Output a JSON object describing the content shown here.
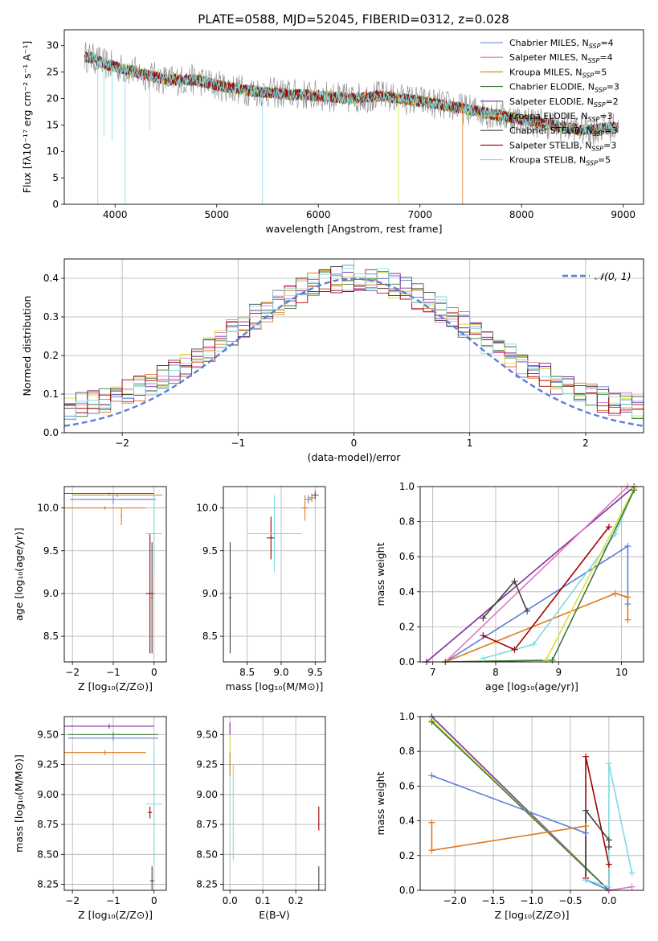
{
  "figure": {
    "title": "PLATE=0588, MJD=52045, FIBERID=0312, z=0.028"
  },
  "chart_data": [
    {
      "id": "spectrum",
      "type": "line",
      "xlabel": "wavelength [Angstrom, rest frame]",
      "ylabel": "Flux [fλ10⁻¹⁷ erg cm⁻² s⁻¹ A⁻¹]",
      "xlim": [
        3500,
        9200
      ],
      "ylim": [
        0,
        33
      ],
      "xticks": [
        4000,
        5000,
        6000,
        7000,
        8000,
        9000
      ],
      "yticks": [
        0,
        5,
        10,
        15,
        20,
        25,
        30
      ],
      "grid": false,
      "legend_position": "top-right",
      "legend": [
        {
          "label": "Chabrier MILES, N",
          "sub": "SSP",
          "suffix": "=4",
          "color": "#5b7fd6"
        },
        {
          "label": "Salpeter MILES, N",
          "sub": "SSP",
          "suffix": "=4",
          "color": "#e377c2"
        },
        {
          "label": "Kroupa MILES, N",
          "sub": "SSP",
          "suffix": "=5",
          "color": "#c8860a"
        },
        {
          "label": "Chabrier ELODIE, N",
          "sub": "SSP",
          "suffix": "=3",
          "color": "#3c7a3c"
        },
        {
          "label": "Salpeter ELODIE, N",
          "sub": "SSP",
          "suffix": "=2",
          "color": "#7b2d9e"
        },
        {
          "label": "Kroupa ELODIE, N",
          "sub": "SSP",
          "suffix": "=3",
          "color": "#dde03a"
        },
        {
          "label": "Chabrier STELIB, N",
          "sub": "SSP",
          "suffix": "=3",
          "color": "#444444"
        },
        {
          "label": "Salpeter STELIB, N",
          "sub": "SSP",
          "suffix": "=3",
          "color": "#a00000"
        },
        {
          "label": "Kroupa STELIB, N",
          "sub": "SSP",
          "suffix": "=5",
          "color": "#7fdbe0"
        }
      ],
      "series_envelope": {
        "x": [
          3700,
          3800,
          3900,
          4000,
          4100,
          4300,
          4500,
          4800,
          5000,
          5300,
          5600,
          6000,
          6300,
          6600,
          6800,
          7000,
          7300,
          7600,
          8000,
          8300,
          8600,
          8900
        ],
        "y": [
          28,
          27.5,
          26.5,
          26,
          25.5,
          24.5,
          23.5,
          23.5,
          22.5,
          21.5,
          21,
          20.5,
          20,
          20.5,
          20,
          19.5,
          18.5,
          17.5,
          16,
          15,
          14,
          14.5
        ]
      }
    },
    {
      "id": "residuals",
      "type": "line",
      "xlabel": "(data-model)/error",
      "ylabel": "Normed distribution",
      "xlim": [
        -2.5,
        2.5
      ],
      "ylim": [
        0,
        0.45
      ],
      "xticks": [
        -2,
        -1,
        0,
        1,
        2
      ],
      "yticks": [
        0.0,
        0.1,
        0.2,
        0.3,
        0.4
      ],
      "grid": true,
      "legend_position": "top-right",
      "legend_label": "𝒩(0, 1)",
      "gaussian": {
        "mu": 0,
        "sigma": 1,
        "color": "#5b7fd6"
      }
    },
    {
      "id": "age_vs_Z",
      "type": "scatter",
      "xlabel": "Z [log₁₀(Z/Z⊙)]",
      "ylabel": "age  [log₁₀(age/yr)]",
      "xlim": [
        -2.2,
        0.3
      ],
      "ylim": [
        8.2,
        10.25
      ],
      "xticks": [
        -2,
        -1,
        0
      ],
      "yticks": [
        8.5,
        9.0,
        9.5,
        10.0
      ],
      "grid": true,
      "points": [
        {
          "x": -1.1,
          "y": 10.17,
          "xe": 1.1,
          "ye": 0.01,
          "color": "#7b2d9e"
        },
        {
          "x": -1.0,
          "y": 10.1,
          "xe": 1.05,
          "ye": 0.05,
          "color": "#5b7fd6"
        },
        {
          "x": -0.9,
          "y": 10.15,
          "xe": 1.1,
          "ye": 0.02,
          "color": "#c8860a"
        },
        {
          "x": -1.2,
          "y": 10.0,
          "xe": 1.0,
          "ye": 0.02,
          "color": "#e07820"
        },
        {
          "x": -0.8,
          "y": 9.9,
          "xe": 0.02,
          "ye": 0.1,
          "color": "#e07820"
        },
        {
          "x": -0.1,
          "y": 9.0,
          "xe": 0.1,
          "ye": 0.7,
          "color": "#a00000"
        },
        {
          "x": -0.05,
          "y": 8.95,
          "xe": 0.02,
          "ye": 0.65,
          "color": "#444444"
        },
        {
          "x": 0.0,
          "y": 9.7,
          "xe": 0.2,
          "ye": 0.45,
          "color": "#7fdbe0"
        }
      ]
    },
    {
      "id": "age_vs_mass",
      "type": "scatter",
      "xlabel": "mass [log₁₀(M/M⊙)]",
      "ylabel": "",
      "xlim": [
        8.15,
        9.65
      ],
      "ylim": [
        8.2,
        10.25
      ],
      "xticks": [
        8.5,
        9.0,
        9.5
      ],
      "yticks": [
        8.5,
        9.0,
        9.5,
        10.0
      ],
      "grid": true,
      "points": [
        {
          "x": 9.5,
          "y": 10.15,
          "xe": 0.05,
          "ye": 0.05,
          "color": "#7b2d9e"
        },
        {
          "x": 9.4,
          "y": 10.1,
          "xe": 0.05,
          "ye": 0.05,
          "color": "#5b7fd6"
        },
        {
          "x": 9.45,
          "y": 10.12,
          "xe": 0.05,
          "ye": 0.05,
          "color": "#c8860a"
        },
        {
          "x": 9.35,
          "y": 10.0,
          "xe": 0.05,
          "ye": 0.15,
          "color": "#e07820"
        },
        {
          "x": 8.85,
          "y": 9.65,
          "xe": 0.06,
          "ye": 0.25,
          "color": "#a00000"
        },
        {
          "x": 8.9,
          "y": 9.7,
          "xe": 0.4,
          "ye": 0.45,
          "color": "#7fdbe0"
        },
        {
          "x": 8.25,
          "y": 8.95,
          "xe": 0.02,
          "ye": 0.65,
          "color": "#444444"
        }
      ]
    },
    {
      "id": "massweight_vs_age",
      "type": "line",
      "xlabel": "age  [log₁₀(age/yr)]",
      "ylabel": "mass weight",
      "xlim": [
        6.8,
        10.35
      ],
      "ylim": [
        0,
        1
      ],
      "xticks": [
        7,
        8,
        9,
        10
      ],
      "yticks": [
        0.0,
        0.2,
        0.4,
        0.6,
        0.8,
        1.0
      ],
      "grid": true,
      "series": [
        {
          "color": "#7b2d9e",
          "x": [
            6.9,
            10.2
          ],
          "y": [
            0.0,
            1.0
          ]
        },
        {
          "color": "#5b7fd6",
          "x": [
            7.2,
            10.1,
            10.1
          ],
          "y": [
            0.0,
            0.66,
            0.33
          ]
        },
        {
          "color": "#e377c2",
          "x": [
            7.2,
            10.1
          ],
          "y": [
            0.0,
            1.0
          ]
        },
        {
          "color": "#e07820",
          "x": [
            7.2,
            9.9,
            10.1,
            10.1
          ],
          "y": [
            0.0,
            0.39,
            0.37,
            0.24
          ]
        },
        {
          "color": "#a00000",
          "x": [
            7.8,
            8.3,
            9.8
          ],
          "y": [
            0.15,
            0.07,
            0.77
          ]
        },
        {
          "color": "#444444",
          "x": [
            7.8,
            8.3,
            8.5
          ],
          "y": [
            0.25,
            0.46,
            0.29
          ]
        },
        {
          "color": "#7fdbe0",
          "x": [
            7.8,
            8.6,
            9.9,
            10.2
          ],
          "y": [
            0.02,
            0.1,
            0.73,
            0.99
          ]
        },
        {
          "color": "#dde03a",
          "x": [
            7.2,
            8.8,
            10.2
          ],
          "y": [
            0.0,
            0.01,
            0.99
          ]
        },
        {
          "color": "#3c7a3c",
          "x": [
            7.2,
            8.9,
            10.2
          ],
          "y": [
            0.0,
            0.01,
            0.98
          ]
        }
      ]
    },
    {
      "id": "mass_vs_Z",
      "type": "scatter",
      "xlabel": "Z [log₁₀(Z/Z⊙)]",
      "ylabel": "mass [log₁₀(M/M⊙)]",
      "xlim": [
        -2.2,
        0.3
      ],
      "ylim": [
        8.2,
        9.65
      ],
      "xticks": [
        -2,
        -1,
        0
      ],
      "yticks": [
        8.25,
        8.5,
        8.75,
        9.0,
        9.25,
        9.5
      ],
      "grid": true,
      "points": [
        {
          "x": -1.1,
          "y": 9.57,
          "xe": 1.1,
          "ye": 0.02,
          "color": "#7b2d9e"
        },
        {
          "x": -1.0,
          "y": 9.47,
          "xe": 1.1,
          "ye": 0.02,
          "color": "#5b7fd6"
        },
        {
          "x": -1.0,
          "y": 9.5,
          "xe": 1.1,
          "ye": 0.02,
          "color": "#3c7a3c"
        },
        {
          "x": -1.2,
          "y": 9.35,
          "xe": 1.0,
          "ye": 0.02,
          "color": "#e07820"
        },
        {
          "x": -0.1,
          "y": 8.85,
          "xe": 0.05,
          "ye": 0.05,
          "color": "#a00000"
        },
        {
          "x": 0.0,
          "y": 8.92,
          "xe": 0.2,
          "ye": 0.5,
          "color": "#7fdbe0"
        },
        {
          "x": -0.05,
          "y": 8.28,
          "xe": 0.05,
          "ye": 0.12,
          "color": "#444444"
        }
      ]
    },
    {
      "id": "mass_vs_EBV",
      "type": "scatter",
      "xlabel": "E(B-V)",
      "ylabel": "",
      "xlim": [
        -0.02,
        0.29
      ],
      "ylim": [
        8.2,
        9.65
      ],
      "xticks": [
        0.0,
        0.1,
        0.2
      ],
      "yticks": [
        8.25,
        8.5,
        8.75,
        9.0,
        9.25,
        9.5
      ],
      "grid": true,
      "points": [
        {
          "x": 0.0,
          "y": 9.55,
          "xe": 0.0,
          "ye": 0.05,
          "color": "#7b2d9e"
        },
        {
          "x": 0.0,
          "y": 9.4,
          "xe": 0.0,
          "ye": 0.1,
          "color": "#dde03a"
        },
        {
          "x": 0.0,
          "y": 9.25,
          "xe": 0.0,
          "ye": 0.1,
          "color": "#e07820"
        },
        {
          "x": 0.01,
          "y": 8.85,
          "xe": 0.0,
          "ye": 0.4,
          "color": "#7fdbe0"
        },
        {
          "x": 0.27,
          "y": 8.8,
          "xe": 0.0,
          "ye": 0.1,
          "color": "#a00000"
        },
        {
          "x": 0.27,
          "y": 8.3,
          "xe": 0.0,
          "ye": 0.1,
          "color": "#444444"
        }
      ]
    },
    {
      "id": "massweight_vs_Z",
      "type": "line",
      "xlabel": "Z [log₁₀(Z/Z⊙)]",
      "ylabel": "mass weight",
      "xlim": [
        -2.45,
        0.45
      ],
      "ylim": [
        0,
        1
      ],
      "xticks": [
        -2.0,
        -1.5,
        -1.0,
        -0.5,
        0.0
      ],
      "yticks": [
        0.0,
        0.2,
        0.4,
        0.6,
        0.8,
        1.0
      ],
      "grid": true,
      "series": [
        {
          "color": "#7b2d9e",
          "x": [
            -2.3,
            0.0
          ],
          "y": [
            1.0,
            0.0
          ]
        },
        {
          "color": "#dde03a",
          "x": [
            -2.3,
            0.0
          ],
          "y": [
            0.98,
            0.0
          ]
        },
        {
          "color": "#3c7a3c",
          "x": [
            -2.3,
            0.0
          ],
          "y": [
            0.97,
            0.0
          ]
        },
        {
          "color": "#5b7fd6",
          "x": [
            -2.3,
            -0.3,
            -0.3,
            0.0
          ],
          "y": [
            0.66,
            0.33,
            0.06,
            0.0
          ]
        },
        {
          "color": "#e07820",
          "x": [
            -2.3,
            -2.3,
            -0.3
          ],
          "y": [
            0.39,
            0.23,
            0.37
          ]
        },
        {
          "color": "#a00000",
          "x": [
            -0.3,
            -0.3,
            0.0,
            0.0
          ],
          "y": [
            0.07,
            0.77,
            0.15,
            0.0
          ]
        },
        {
          "color": "#444444",
          "x": [
            -0.3,
            -0.3,
            0.0,
            0.0
          ],
          "y": [
            0.06,
            0.46,
            0.29,
            0.25
          ]
        },
        {
          "color": "#7fdbe0",
          "x": [
            -0.3,
            0.0,
            0.0,
            0.3
          ],
          "y": [
            0.06,
            0.02,
            0.73,
            0.1
          ]
        },
        {
          "color": "#e377c2",
          "x": [
            0.0,
            0.3
          ],
          "y": [
            0.0,
            0.02
          ]
        }
      ]
    }
  ]
}
